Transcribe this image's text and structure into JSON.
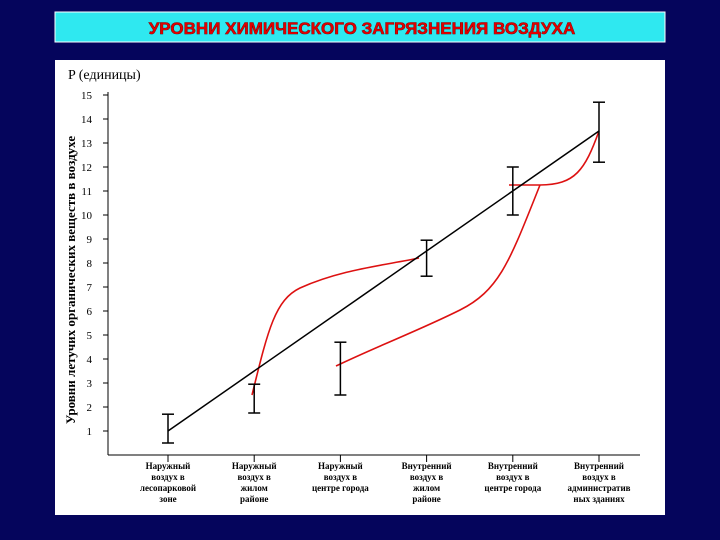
{
  "chart_data": {
    "type": "errorbar",
    "title": "УРОВНИ ХИМИЧЕСКОГО ЗАГРЯЗНЕНИЯ ВОЗДУХА",
    "y_unit_label": "P (единицы)",
    "ylabel": "Уровни летучих органических веществ в воздухе",
    "categories": [
      "Наружный\nвоздух в\nлесопарковой\nзоне",
      "Наружный\nвоздух в\nжилом\nрайоне",
      "Наружный\nвоздух в\nцентре города",
      "Внутренний\nвоздух в\nжилом\nрайоне",
      "Внутренний\nвоздух в\nцентре города",
      "Внутренний\nвоздух в\nадминистратив\nных зданиях"
    ],
    "values": [
      1.1,
      2.35,
      3.6,
      8.2,
      11,
      13.45
    ],
    "errors": [
      0.6,
      0.6,
      1.1,
      0.75,
      1,
      1.25
    ],
    "trend": {
      "values": [
        1,
        13.5
      ],
      "color": "#000000"
    },
    "curve_color": "#dd1111",
    "ylim": [
      0,
      15
    ],
    "yticks": [
      1,
      2,
      3,
      4,
      5,
      6,
      7,
      8,
      9,
      10,
      11,
      12,
      13,
      14,
      15
    ]
  }
}
